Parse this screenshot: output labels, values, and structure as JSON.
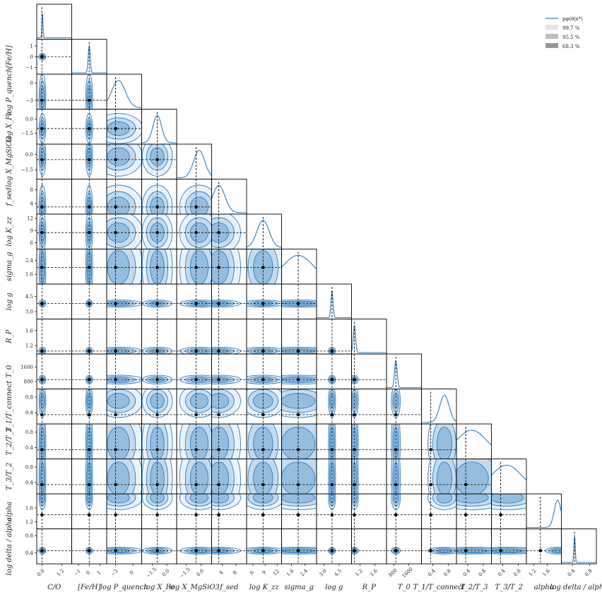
{
  "chart_data": {
    "type": "corner",
    "parameters": [
      {
        "label": "C/O",
        "ticks": [
          "0.0",
          "1.2"
        ],
        "tick_values": [
          0.0,
          1.2
        ],
        "range": [
          -0.3,
          1.8
        ],
        "truth": 0.0,
        "peak": 0.03,
        "width": 0.03
      },
      {
        "label": "[Fe/H]",
        "ticks": [
          "−1",
          "0",
          "1"
        ],
        "tick_values": [
          -1,
          0,
          1
        ],
        "range": [
          -1.6,
          1.6
        ],
        "truth": 0.0,
        "peak": 0.0,
        "width": 0.09
      },
      {
        "label": "log P_quench",
        "ticks": [
          "−3",
          "0"
        ],
        "tick_values": [
          -3,
          0
        ],
        "range": [
          -4.5,
          1.5
        ],
        "truth": -3.0,
        "peak": -2.5,
        "width": 1.2
      },
      {
        "label": "log X_Fe",
        "ticks": [
          "−1.5",
          "0.0"
        ],
        "tick_values": [
          -1.5,
          0.0
        ],
        "range": [
          -2.6,
          1.0
        ],
        "truth": -1.0,
        "peak": -1.0,
        "width": 0.45
      },
      {
        "label": "log X_MgSiO3",
        "ticks": [
          "−1.5",
          "0.0"
        ],
        "tick_values": [
          -1.5,
          0.0
        ],
        "range": [
          -2.4,
          1.0
        ],
        "truth": -0.5,
        "peak": -0.2,
        "width": 0.55
      },
      {
        "label": "f_sed",
        "ticks": [
          "4",
          "8"
        ],
        "tick_values": [
          4,
          8
        ],
        "range": [
          1,
          11
        ],
        "truth": 3.0,
        "peak": 3.0,
        "width": 1.8
      },
      {
        "label": "log K_zz",
        "ticks": [
          "6",
          "9",
          "12"
        ],
        "tick_values": [
          6,
          9,
          12
        ],
        "range": [
          4.5,
          13.0
        ],
        "truth": 8.5,
        "peak": 8.5,
        "width": 1.5
      },
      {
        "label": "sigma_g",
        "ticks": [
          "1.6",
          "2.4"
        ],
        "tick_values": [
          1.6,
          2.4
        ],
        "range": [
          1.05,
          3.05
        ],
        "truth": 2.0,
        "peak": 2.0,
        "width": 0.9
      },
      {
        "label": "log g",
        "ticks": [
          "3.0",
          "4.5"
        ],
        "tick_values": [
          3.0,
          4.5
        ],
        "range": [
          2.3,
          5.7
        ],
        "truth": 3.8,
        "peak": 3.8,
        "width": 0.1
      },
      {
        "label": "R_P",
        "ticks": [
          "1.2",
          "1.6"
        ],
        "tick_values": [
          1.2,
          1.6
        ],
        "range": [
          0.98,
          1.9
        ],
        "truth": 1.05,
        "peak": 1.05,
        "width": 0.03
      },
      {
        "label": "T_0",
        "ticks": [
          "800",
          "1600"
        ],
        "tick_values": [
          800,
          1600
        ],
        "range": [
          400,
          2300
        ],
        "truth": 900,
        "peak": 900,
        "width": 70
      },
      {
        "label": "T_1/T_connect",
        "ticks": [
          "0.4",
          "0.8"
        ],
        "tick_values": [
          0.4,
          0.8
        ],
        "range": [
          0.12,
          1.0
        ],
        "truth": 0.35,
        "peak": 0.7,
        "width": 0.12
      },
      {
        "label": "T_2/T_3",
        "ticks": [
          "0.4",
          "0.8"
        ],
        "tick_values": [
          0.4,
          0.8
        ],
        "range": [
          0.12,
          1.0
        ],
        "truth": 0.35,
        "peak": 0.5,
        "width": 0.4
      },
      {
        "label": "T_3/T_2",
        "ticks": [
          "0.4",
          "0.8"
        ],
        "tick_values": [
          0.4,
          0.8
        ],
        "range": [
          0.12,
          1.0
        ],
        "truth": 0.35,
        "peak": 0.5,
        "width": 0.4
      },
      {
        "label": "alpha",
        "ticks": [
          "1.2",
          "1.6"
        ],
        "tick_values": [
          1.2,
          1.6
        ],
        "range": [
          1.0,
          2.0
        ],
        "truth": 1.4,
        "peak": 1.9,
        "width": 0.1
      },
      {
        "label": "log delta / alpha",
        "ticks": [
          "0.4",
          "0.8"
        ],
        "tick_values": [
          0.4,
          0.8
        ],
        "range": [
          0.15,
          0.95
        ],
        "truth": 0.45,
        "peak": 0.45,
        "width": 0.015
      }
    ],
    "legend": {
      "placement": "top-right",
      "entries": [
        "pφ(θ|x*)",
        "99.7 %",
        "95.5 %",
        "68.3 %"
      ]
    },
    "colors": {
      "line": "#2f7fc1",
      "fill": "#2f7fc1",
      "truth": "#000000"
    },
    "credible_levels": [
      99.7,
      95.5,
      68.3
    ]
  }
}
